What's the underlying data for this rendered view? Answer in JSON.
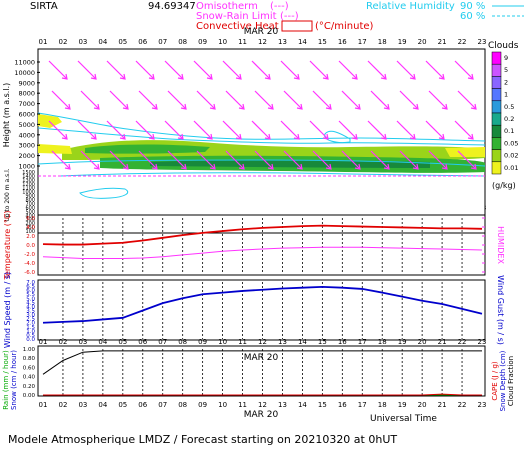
{
  "header": {
    "station": "SIRTA",
    "coords": "94.69347",
    "overlap_text": "Omisotherm",
    "legend_isotherm": "0°C isotherm",
    "legend_snow": "Snow-Rain Limit",
    "legend_conv": "Convective Heat",
    "legend_conv_unit": "(°C/minute)",
    "legend_dash": "(---)",
    "legend_rh": "Relative Humidity",
    "rh_90": "90 %",
    "rh_60": "60 %"
  },
  "date_label": "MAR 20",
  "hours": [
    "01",
    "02",
    "03",
    "04",
    "05",
    "06",
    "07",
    "08",
    "09",
    "10",
    "11",
    "12",
    "13",
    "14",
    "15",
    "16",
    "17",
    "18",
    "19",
    "20",
    "21",
    "22",
    "23"
  ],
  "footer": {
    "universal_time": "Universal Time",
    "title": "Modele Atmospherique LMDZ / Forecast starting on 20210320 at 0hUT"
  },
  "colors": {
    "red": "#e00000",
    "magenta": "#ff33ff",
    "cyan": "#22ccee",
    "blue": "#0000cc",
    "green": "#22aa22",
    "grid_dash": "#000000"
  },
  "chart_data": [
    {
      "type": "heatmap",
      "name": "clouds",
      "ylabel": "Height (m a.s.l.)",
      "y_ticks_upper": [
        "11000",
        "10000",
        "9000",
        "8000",
        "7000",
        "6000",
        "5000",
        "4000",
        "3000",
        "2000",
        "1000"
      ],
      "y_ticks_lower": [
        "1500",
        "1400",
        "1300",
        "1200",
        "1100",
        "1000",
        "900",
        "800",
        "700",
        "600",
        "500",
        "400",
        "300",
        "200",
        "150",
        "100"
      ],
      "y_sub_label": "Up to 200 m a.s.l.",
      "colorbar_title": "Clouds",
      "colorbar_labels": [
        "9",
        "5",
        "2",
        "1",
        "0.5",
        "0.2",
        "0.1",
        "0.05",
        "0.02",
        "0.01"
      ],
      "colorbar_colors": [
        "#ff00ff",
        "#cc55ff",
        "#8a66ff",
        "#5577ff",
        "#2a9adc",
        "#19a98c",
        "#17893b",
        "#33b233",
        "#9ad41a",
        "#eef21e"
      ],
      "colorbar_unit": "(g/kg)",
      "wind_arrows": "magenta, pointing down-right"
    },
    {
      "type": "line",
      "name": "temperature",
      "ylabel": "Temperature (°C)",
      "ylabel2": "HUMIDEX",
      "y_ticks": [
        "6.0",
        "4.0",
        "2.0",
        "0.0",
        "-2.0",
        "-4.0",
        "-6.0"
      ],
      "ylim": [
        -6,
        6
      ],
      "x": [
        1,
        2,
        3,
        4,
        5,
        6,
        7,
        8,
        9,
        10,
        11,
        12,
        13,
        14,
        15,
        16,
        17,
        18,
        19,
        20,
        21,
        22,
        23
      ],
      "series": [
        {
          "name": "temperature",
          "color": "#e00000",
          "values": [
            0.2,
            0.1,
            0.1,
            0.3,
            0.5,
            1.0,
            1.6,
            2.2,
            2.7,
            3.1,
            3.5,
            3.8,
            4.0,
            4.2,
            4.3,
            4.2,
            4.1,
            4.0,
            3.9,
            3.8,
            3.7,
            3.7,
            3.6
          ]
        },
        {
          "name": "humidex",
          "color": "#ff33ff",
          "values": [
            -2.6,
            -2.8,
            -3.0,
            -3.0,
            -3.0,
            -2.9,
            -2.6,
            -2.2,
            -1.8,
            -1.4,
            -1.1,
            -0.9,
            -0.7,
            -0.6,
            -0.5,
            -0.5,
            -0.5,
            -0.6,
            -0.7,
            -0.8,
            -0.9,
            -1.0,
            -1.1
          ]
        }
      ]
    },
    {
      "type": "line",
      "name": "wind",
      "ylabel": "Wind Speed (m / s)",
      "ylabel2": "Wind Gust (m / s)",
      "y_ticks": [
        "7.0",
        "6.5",
        "6.0",
        "5.5",
        "5.0",
        "4.5",
        "4.0",
        "3.5",
        "3.0",
        "2.5",
        "2.0",
        "1.5",
        "1.0",
        "0.5",
        "0.0"
      ],
      "ylim": [
        0,
        7
      ],
      "x": [
        1,
        2,
        3,
        4,
        5,
        6,
        7,
        8,
        9,
        10,
        11,
        12,
        13,
        14,
        15,
        16,
        17,
        18,
        19,
        20,
        21,
        22,
        23
      ],
      "series": [
        {
          "name": "wind speed",
          "color": "#0000cc",
          "values": [
            2.0,
            2.1,
            2.2,
            2.4,
            2.6,
            3.5,
            4.4,
            5.0,
            5.5,
            5.7,
            5.9,
            6.05,
            6.2,
            6.3,
            6.4,
            6.3,
            6.15,
            5.7,
            5.2,
            4.7,
            4.3,
            3.7,
            3.1
          ]
        }
      ]
    },
    {
      "type": "line",
      "name": "precipitation",
      "ylabel": "Rain (mm / hour)",
      "ylabel_b": "Snow (cm / hour)",
      "ylabel2": "CAPE (J / g)",
      "ylabel2_b": "Snow Depth (cm)",
      "ylabel2_c": "Cloud Fraction",
      "y_ticks": [
        "1.00",
        "0.80",
        "0.60",
        "0.40",
        "0.20",
        "0.00"
      ],
      "ylim": [
        0,
        1
      ],
      "x": [
        1,
        2,
        3,
        4,
        5,
        6,
        7,
        8,
        9,
        10,
        11,
        12,
        13,
        14,
        15,
        16,
        17,
        18,
        19,
        20,
        21,
        22,
        23
      ],
      "series": [
        {
          "name": "cloud fraction",
          "color": "#000000",
          "values": [
            0.45,
            0.75,
            0.93,
            0.96,
            0.96,
            0.96,
            0.96,
            0.96,
            0.96,
            0.96,
            0.96,
            0.96,
            0.96,
            0.96,
            0.96,
            0.96,
            0.96,
            0.96,
            0.96,
            0.96,
            0.96,
            0.96,
            0.96
          ]
        },
        {
          "name": "rain",
          "color": "#00aa00",
          "values": [
            0,
            0,
            0,
            0,
            0,
            0,
            0,
            0,
            0,
            0,
            0,
            0,
            0,
            0,
            0,
            0,
            0,
            0,
            0,
            0,
            0,
            0,
            0
          ]
        },
        {
          "name": "cape",
          "color": "#e00000",
          "values": [
            0,
            0,
            0,
            0,
            0,
            0,
            0,
            0,
            0,
            0,
            0,
            0,
            0,
            0,
            0,
            0,
            0,
            0,
            0,
            0,
            0.02,
            0,
            0
          ]
        }
      ]
    }
  ]
}
